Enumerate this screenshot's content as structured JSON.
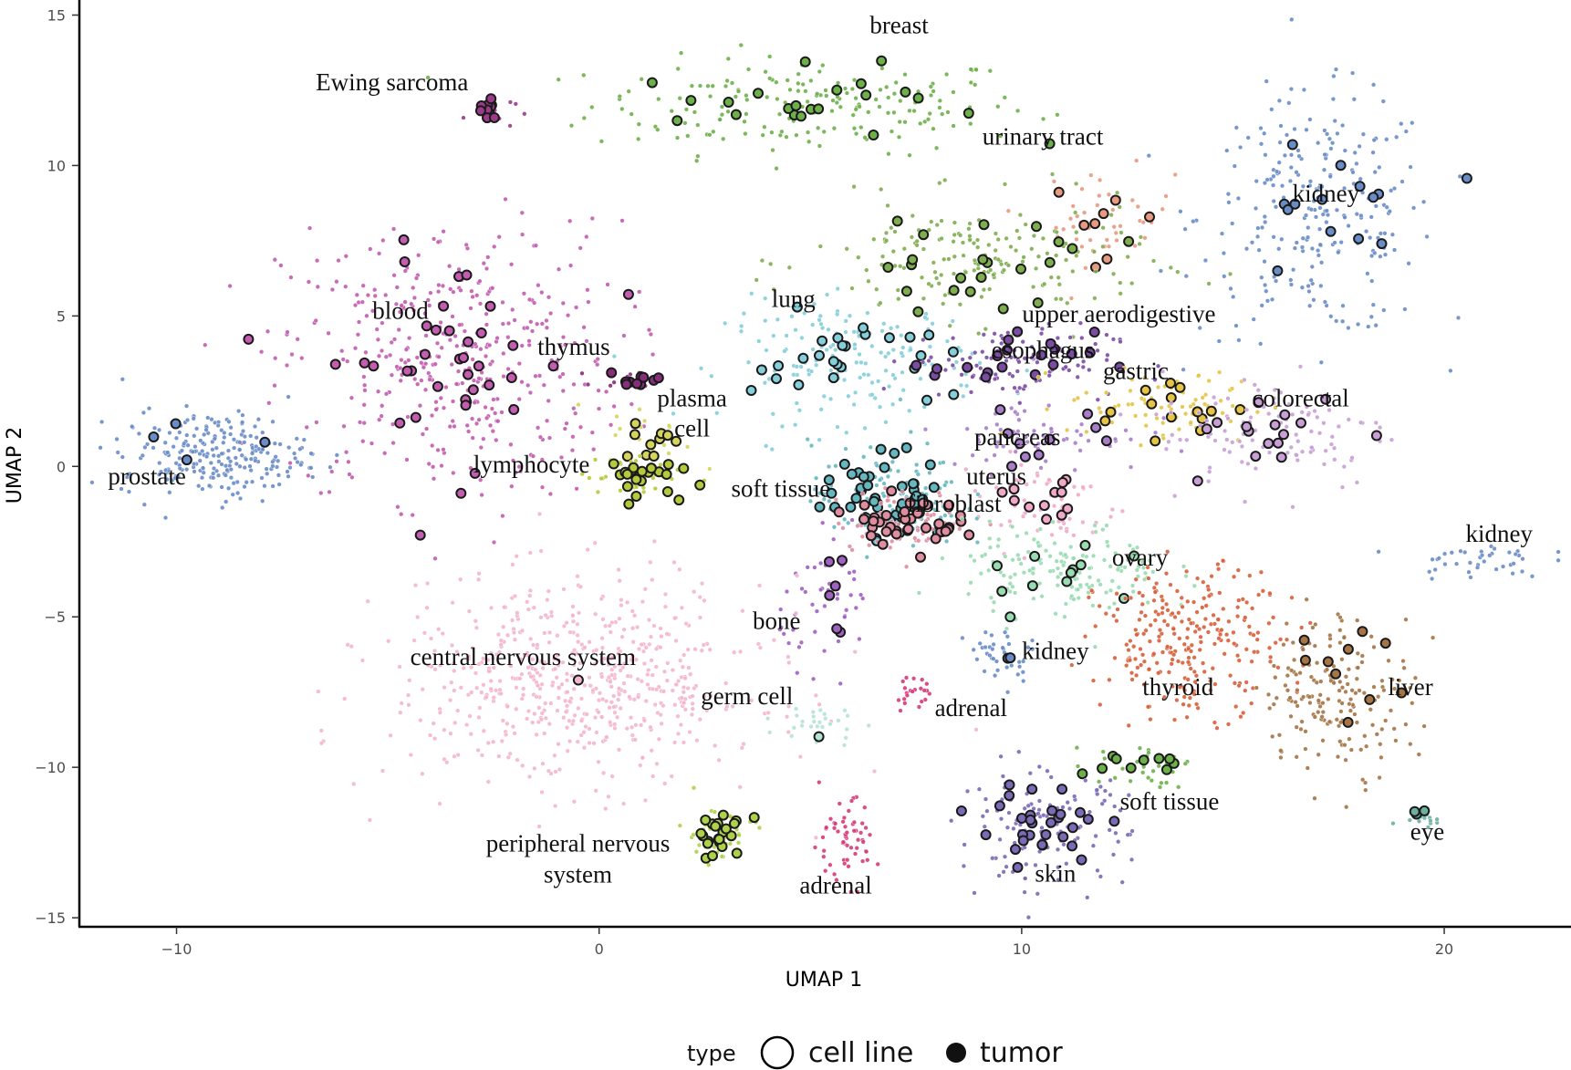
{
  "chart_data": {
    "type": "scatter",
    "xlabel": "UMAP 1",
    "ylabel": "UMAP 2",
    "xlim": [
      -12.3,
      23.0
    ],
    "ylim": [
      -15.3,
      15.5
    ],
    "xticks": [
      -10,
      0,
      10,
      20
    ],
    "yticks": [
      15,
      10,
      5,
      0,
      -5,
      -10,
      -15
    ],
    "grid": false,
    "legend": {
      "position": "bottom",
      "title": "type",
      "entries": [
        {
          "label": "cell line",
          "marker": "open-circle"
        },
        {
          "label": "tumor",
          "marker": "filled-circle"
        }
      ]
    },
    "clusters": [
      {
        "name": "breast",
        "label": "breast",
        "label_at": [
          7.1,
          14.4
        ],
        "color": "#6db04a",
        "cx": 5.0,
        "cy": 12.0,
        "sx": 2.6,
        "sy": 0.8,
        "n": 190,
        "tumors": 22
      },
      {
        "name": "ewing-sarcoma",
        "label": "Ewing sarcoma",
        "label_at": [
          -4.9,
          12.5
        ],
        "color": "#9c3a8a",
        "cx": -2.6,
        "cy": 11.8,
        "sx": 0.3,
        "sy": 0.3,
        "n": 12,
        "tumors": 10
      },
      {
        "name": "urinary-tract",
        "label": "urinary tract",
        "label_at": [
          10.5,
          10.7
        ],
        "color": "#e79a80",
        "cx": 12.0,
        "cy": 8.3,
        "sx": 0.8,
        "sy": 0.8,
        "n": 45,
        "tumors": 8
      },
      {
        "name": "kidney-upper",
        "label": "kidney",
        "label_at": [
          17.2,
          8.8
        ],
        "color": "#6a8dc8",
        "cx": 17.0,
        "cy": 8.3,
        "sx": 1.4,
        "sy": 2.0,
        "n": 250,
        "tumors": 14
      },
      {
        "name": "blood",
        "label": "blood",
        "label_at": [
          -4.7,
          4.9
        ],
        "color": "#c35db0",
        "cx": -3.5,
        "cy": 3.5,
        "sx": 2.0,
        "sy": 2.3,
        "n": 420,
        "tumors": 38
      },
      {
        "name": "lung",
        "label": "lung",
        "label_at": [
          4.6,
          5.3
        ],
        "color": "#85cfdb",
        "cx": 6.0,
        "cy": 3.5,
        "sx": 1.5,
        "sy": 1.0,
        "n": 170,
        "tumors": 26
      },
      {
        "name": "upper-aerodigestive",
        "label": "upper aerodigestive",
        "label_at": [
          12.3,
          4.8
        ],
        "color": "#7fae4f",
        "cx": 9.0,
        "cy": 6.8,
        "sx": 2.0,
        "sy": 1.0,
        "n": 180,
        "tumors": 22
      },
      {
        "name": "thymus",
        "label": "thymus",
        "label_at": [
          -0.6,
          3.7
        ],
        "color": "#862e7a",
        "cx": 0.8,
        "cy": 2.9,
        "sx": 0.4,
        "sy": 0.15,
        "n": 14,
        "tumors": 10
      },
      {
        "name": "esophagus",
        "label": "esophagus",
        "label_at": [
          10.5,
          3.6
        ],
        "color": "#7a4da2",
        "cx": 9.8,
        "cy": 3.5,
        "sx": 1.2,
        "sy": 0.6,
        "n": 110,
        "tumors": 20
      },
      {
        "name": "gastric",
        "label": "gastric",
        "label_at": [
          12.7,
          2.9
        ],
        "color": "#e6c446",
        "cx": 13.5,
        "cy": 2.0,
        "sx": 1.2,
        "sy": 0.6,
        "n": 85,
        "tumors": 14
      },
      {
        "name": "colorectal",
        "label": "colorectal",
        "label_at": [
          16.6,
          2.0
        ],
        "color": "#c8a0d6",
        "cx": 16.0,
        "cy": 1.2,
        "sx": 1.4,
        "sy": 1.0,
        "n": 110,
        "tumors": 16
      },
      {
        "name": "plasma-cell",
        "label": "plasma cell",
        "label_at": [
          2.2,
          2.0
        ],
        "color": "#d5d55b",
        "cx": 1.2,
        "cy": 1.0,
        "sx": 0.5,
        "sy": 0.5,
        "n": 20,
        "tumors": 10
      },
      {
        "name": "pancreas",
        "label": "pancreas",
        "label_at": [
          9.9,
          0.7
        ],
        "color": "#a87ec9",
        "cx": 10.5,
        "cy": 1.0,
        "sx": 1.2,
        "sy": 0.6,
        "n": 70,
        "tumors": 10
      },
      {
        "name": "prostate",
        "label": "prostate",
        "label_at": [
          -10.7,
          -0.6
        ],
        "color": "#6a8dc8",
        "cx": -9.1,
        "cy": 0.4,
        "sx": 1.1,
        "sy": 0.7,
        "n": 240,
        "tumors": 4
      },
      {
        "name": "lymphocyte",
        "label": "lymphocyte",
        "label_at": [
          -1.6,
          -0.2
        ],
        "color": "#b5c93d",
        "cx": 0.8,
        "cy": -0.3,
        "sx": 0.6,
        "sy": 0.4,
        "n": 40,
        "tumors": 22
      },
      {
        "name": "uterus",
        "label": "uterus",
        "label_at": [
          9.4,
          -0.6
        ],
        "color": "#f0aac8",
        "cx": 10.4,
        "cy": -1.2,
        "sx": 1.0,
        "sy": 0.8,
        "n": 60,
        "tumors": 12
      },
      {
        "name": "soft-tissue-main",
        "label": "soft tissue",
        "label_at": [
          4.3,
          -1.0
        ],
        "color": "#66b8c0",
        "cx": 6.8,
        "cy": -1.0,
        "sx": 0.9,
        "sy": 0.9,
        "n": 120,
        "tumors": 45
      },
      {
        "name": "fibroblast",
        "label": "fibroblast",
        "label_at": [
          8.4,
          -1.5
        ],
        "color": "#e08da0",
        "cx": 7.2,
        "cy": -1.8,
        "sx": 0.8,
        "sy": 0.5,
        "n": 80,
        "tumors": 40
      },
      {
        "name": "kidney-right",
        "label": "kidney",
        "label_at": [
          21.3,
          -2.5
        ],
        "color": "#6a8dc8",
        "cx": 20.8,
        "cy": -3.1,
        "sx": 0.8,
        "sy": 0.3,
        "n": 40,
        "tumors": 0
      },
      {
        "name": "ovary",
        "label": "ovary",
        "label_at": [
          12.8,
          -3.3
        ],
        "color": "#99dcb2",
        "cx": 11.0,
        "cy": -3.5,
        "sx": 1.2,
        "sy": 0.8,
        "n": 160,
        "tumors": 12
      },
      {
        "name": "bone",
        "label": "bone",
        "label_at": [
          4.2,
          -5.4
        ],
        "color": "#a062c0",
        "cx": 5.5,
        "cy": -4.5,
        "sx": 0.6,
        "sy": 1.0,
        "n": 50,
        "tumors": 6
      },
      {
        "name": "central-nervous-system",
        "label": "central nervous system",
        "label_at": [
          -1.8,
          -6.6
        ],
        "color": "#f4b6cf",
        "cx": -0.5,
        "cy": -7.2,
        "sx": 2.2,
        "sy": 1.7,
        "n": 600,
        "tumors": 1
      },
      {
        "name": "kidney-middle",
        "label": "kidney",
        "label_at": [
          10.8,
          -6.4
        ],
        "color": "#6a8dc8",
        "cx": 9.5,
        "cy": -6.3,
        "sx": 0.4,
        "sy": 0.5,
        "n": 40,
        "tumors": 2
      },
      {
        "name": "thyroid",
        "label": "thyroid",
        "label_at": [
          13.7,
          -7.6
        ],
        "color": "#d8603a",
        "cx": 14.0,
        "cy": -5.8,
        "sx": 1.1,
        "sy": 1.2,
        "n": 260,
        "tumors": 0
      },
      {
        "name": "liver",
        "label": "liver",
        "label_at": [
          19.2,
          -7.6
        ],
        "color": "#a57545",
        "cx": 17.5,
        "cy": -7.5,
        "sx": 0.9,
        "sy": 1.3,
        "n": 180,
        "tumors": 10
      },
      {
        "name": "germ-cell",
        "label": "germ cell",
        "label_at": [
          3.5,
          -7.9
        ],
        "color": "#b6e4d2",
        "cx": 5.2,
        "cy": -8.5,
        "sx": 0.5,
        "sy": 0.4,
        "n": 28,
        "tumors": 1
      },
      {
        "name": "adrenal-middle",
        "label": "adrenal",
        "label_at": [
          8.8,
          -8.3
        ],
        "color": "#d63a7a",
        "cx": 7.5,
        "cy": -7.5,
        "sx": 0.3,
        "sy": 0.35,
        "n": 22,
        "tumors": 0
      },
      {
        "name": "soft-tissue-lower",
        "label": "soft tissue",
        "label_at": [
          13.5,
          -11.4
        ],
        "color": "#6db04a",
        "cx": 12.6,
        "cy": -9.9,
        "sx": 0.7,
        "sy": 0.35,
        "n": 30,
        "tumors": 10
      },
      {
        "name": "peripheral-nervous-system",
        "label": "peripheral nervous system",
        "label_at": [
          -0.5,
          -12.8
        ],
        "color": "#aed14a",
        "cx": 2.8,
        "cy": -12.2,
        "sx": 0.45,
        "sy": 0.5,
        "n": 40,
        "tumors": 22
      },
      {
        "name": "adrenal-lower",
        "label": "adrenal",
        "label_at": [
          5.6,
          -14.2
        ],
        "color": "#d63a7a",
        "cx": 5.8,
        "cy": -12.5,
        "sx": 0.4,
        "sy": 0.7,
        "n": 60,
        "tumors": 0
      },
      {
        "name": "skin",
        "label": "skin",
        "label_at": [
          10.8,
          -13.8
        ],
        "color": "#7b6ab5",
        "cx": 10.5,
        "cy": -12.0,
        "sx": 1.0,
        "sy": 0.9,
        "n": 140,
        "tumors": 30
      },
      {
        "name": "eye",
        "label": "eye",
        "label_at": [
          19.6,
          -12.4
        ],
        "color": "#6db0a0",
        "cx": 19.5,
        "cy": -11.6,
        "sx": 0.3,
        "sy": 0.15,
        "n": 12,
        "tumors": 3
      }
    ]
  }
}
